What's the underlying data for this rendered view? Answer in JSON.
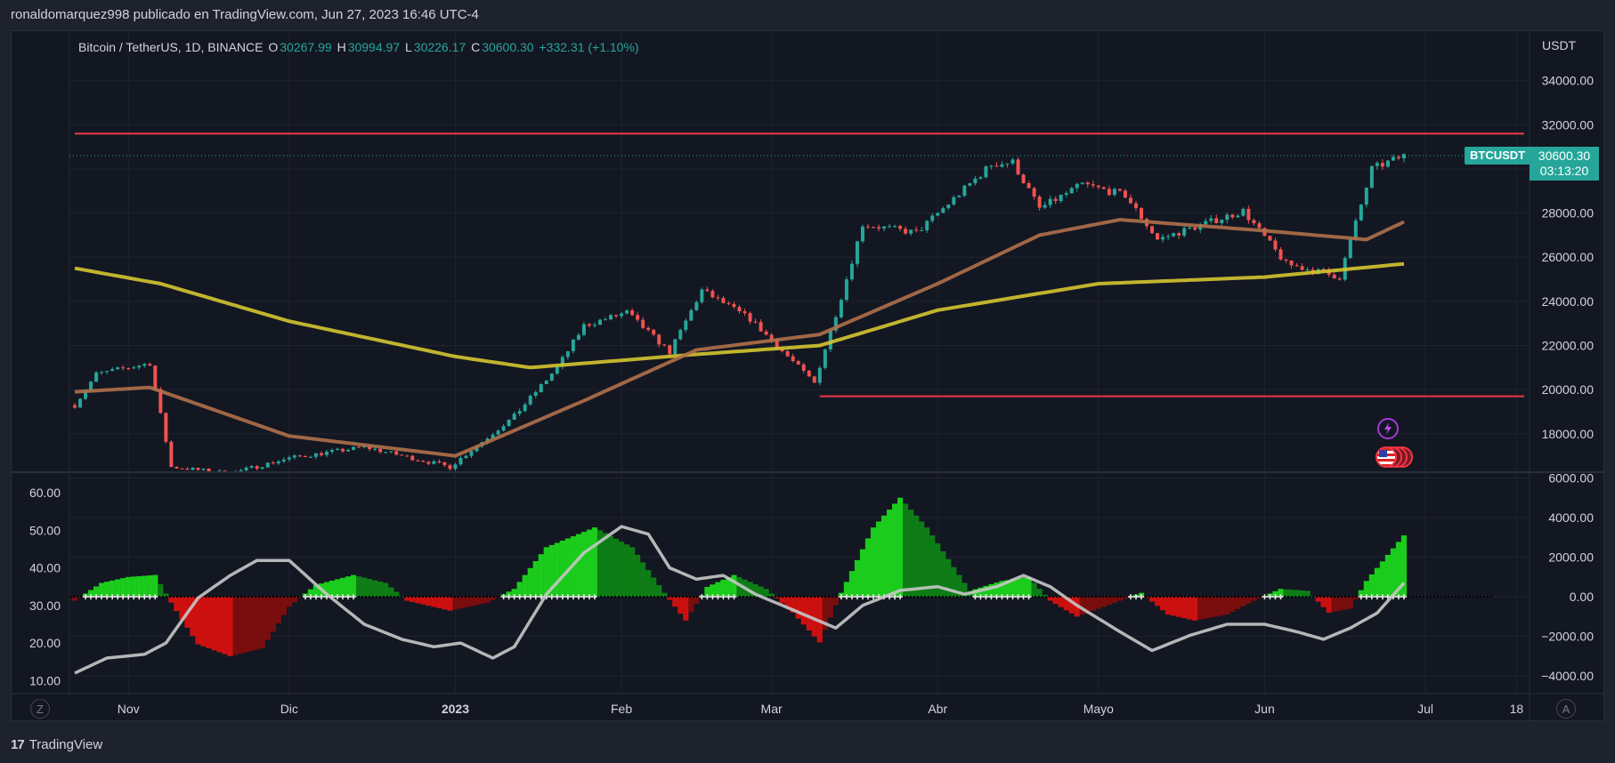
{
  "header": {
    "text": "ronaldomarquez998 publicado en TradingView.com, Jun 27, 2023 16:46 UTC-4"
  },
  "legend": {
    "symbol": "Bitcoin / TetherUS, 1D, BINANCE",
    "o_label": "O",
    "o_value": "30267.99",
    "h_label": "H",
    "h_value": "30994.97",
    "l_label": "L",
    "l_value": "30226.17",
    "c_label": "C",
    "c_value": "30600.30",
    "change": "+332.31 (+1.10%)"
  },
  "price_tag": {
    "symbol": "BTCUSDT",
    "price": "30600.30",
    "countdown": "03:13:20"
  },
  "footer": {
    "brand": "TradingView",
    "logo": "17"
  },
  "buttons": {
    "zoom": "Z",
    "auto": "A"
  },
  "colors": {
    "up": "#26a69a",
    "down": "#ef5350",
    "ema200": "#d5c530",
    "ema50": "#b0704a",
    "resistance": "#f23645",
    "green_fill": "#1ccc1c",
    "red_fill": "#cc1010",
    "grey_line": "#c8c8c8"
  },
  "chart_data": [
    {
      "type": "candlestick",
      "title": "Bitcoin / TetherUS, 1D, BINANCE",
      "currency": "USDT",
      "ylim": [
        16300,
        35800
      ],
      "y_ticks": [
        "34000.00",
        "32000.00",
        "30000.00",
        "28000.00",
        "26000.00",
        "24000.00",
        "22000.00",
        "20000.00",
        "18000.00"
      ],
      "x_ticks": [
        "Nov",
        "Dic",
        "2023",
        "Feb",
        "Mar",
        "Abr",
        "Mayo",
        "Jun",
        "Jul",
        "18"
      ],
      "last_price": 30600.3,
      "horizontal_lines": [
        {
          "name": "resistance",
          "value": 31600,
          "from": "Oct 22",
          "to": "end"
        },
        {
          "name": "support",
          "value": 19700,
          "from": "Mar 10",
          "to": "end"
        }
      ],
      "closes_sampled": [
        {
          "date": "Oct 22",
          "close": 19300
        },
        {
          "date": "Oct 26",
          "close": 20700
        },
        {
          "date": "Nov 5",
          "close": 21200
        },
        {
          "date": "Nov 9",
          "close": 16500
        },
        {
          "date": "Nov 20",
          "close": 16200
        },
        {
          "date": "Dec 1",
          "close": 16900
        },
        {
          "date": "Dec 15",
          "close": 17400
        },
        {
          "date": "Dec 31",
          "close": 16500
        },
        {
          "date": "Jan 12",
          "close": 18800
        },
        {
          "date": "Jan 20",
          "close": 21000
        },
        {
          "date": "Jan 25",
          "close": 22900
        },
        {
          "date": "Feb 2",
          "close": 23500
        },
        {
          "date": "Feb 10",
          "close": 21700
        },
        {
          "date": "Feb 16",
          "close": 24500
        },
        {
          "date": "Feb 25",
          "close": 23200
        },
        {
          "date": "Mar 9",
          "close": 20300
        },
        {
          "date": "Mar 14",
          "close": 24200
        },
        {
          "date": "Mar 18",
          "close": 27500
        },
        {
          "date": "Mar 28",
          "close": 27100
        },
        {
          "date": "Apr 11",
          "close": 30200
        },
        {
          "date": "Apr 15",
          "close": 30300
        },
        {
          "date": "Apr 20",
          "close": 28200
        },
        {
          "date": "Apr 28",
          "close": 29300
        },
        {
          "date": "May 6",
          "close": 28800
        },
        {
          "date": "May 12",
          "close": 26800
        },
        {
          "date": "May 28",
          "close": 28100
        },
        {
          "date": "Jun 5",
          "close": 25700
        },
        {
          "date": "Jun 15",
          "close": 25100
        },
        {
          "date": "Jun 21",
          "close": 30000
        },
        {
          "date": "Jun 27",
          "close": 30600
        }
      ],
      "series": [
        {
          "name": "",
          "role": "ma-slow",
          "points": [
            {
              "date": "Oct 22",
              "value": 25500
            },
            {
              "date": "Nov 7",
              "value": 24800
            },
            {
              "date": "Dec 1",
              "value": 23100
            },
            {
              "date": "Jan 1",
              "value": 21500
            },
            {
              "date": "Jan 15",
              "value": 21000
            },
            {
              "date": "Feb 15",
              "value": 21600
            },
            {
              "date": "Mar 10",
              "value": 22000
            },
            {
              "date": "Apr 1",
              "value": 23600
            },
            {
              "date": "May 1",
              "value": 24800
            },
            {
              "date": "Jun 1",
              "value": 25100
            },
            {
              "date": "Jun 27",
              "value": 25700
            }
          ]
        },
        {
          "name": "",
          "role": "ma-fast",
          "points": [
            {
              "date": "Oct 22",
              "value": 19900
            },
            {
              "date": "Nov 5",
              "value": 20100
            },
            {
              "date": "Dec 1",
              "value": 17900
            },
            {
              "date": "Jan 1",
              "value": 17000
            },
            {
              "date": "Jan 25",
              "value": 19500
            },
            {
              "date": "Feb 15",
              "value": 21800
            },
            {
              "date": "Mar 10",
              "value": 22500
            },
            {
              "date": "Apr 1",
              "value": 24800
            },
            {
              "date": "Apr 20",
              "value": 27000
            },
            {
              "date": "May 5",
              "value": 27700
            },
            {
              "date": "Jun 1",
              "value": 27200
            },
            {
              "date": "Jun 20",
              "value": 26800
            },
            {
              "date": "Jun 27",
              "value": 27600
            }
          ]
        }
      ]
    },
    {
      "type": "area",
      "title": "",
      "left_axis": {
        "ylim": [
          7,
          65
        ],
        "ticks": [
          "60.00",
          "50.00",
          "40.00",
          "30.00",
          "20.00",
          "10.00"
        ]
      },
      "right_axis": {
        "ylim": [
          -4800,
          6200
        ],
        "ticks": [
          "6000.00",
          "4000.00",
          "2000.00",
          "0.00",
          "−2000.00",
          "−4000.00"
        ]
      },
      "series": [
        {
          "name": "",
          "role": "histogram",
          "axis": "right",
          "points": [
            {
              "date": "Oct 22",
              "value": -200
            },
            {
              "date": "Oct 27",
              "value": 700
            },
            {
              "date": "Nov 1",
              "value": 1000
            },
            {
              "date": "Nov 6",
              "value": 1100
            },
            {
              "date": "Nov 9",
              "value": -300
            },
            {
              "date": "Nov 14",
              "value": -2400
            },
            {
              "date": "Nov 20",
              "value": -3000
            },
            {
              "date": "Nov 26",
              "value": -2600
            },
            {
              "date": "Dec 1",
              "value": -500
            },
            {
              "date": "Dec 6",
              "value": 600
            },
            {
              "date": "Dec 13",
              "value": 1100
            },
            {
              "date": "Dec 19",
              "value": 700
            },
            {
              "date": "Dec 23",
              "value": -200
            },
            {
              "date": "Dec 31",
              "value": -700
            },
            {
              "date": "Jan 7",
              "value": -300
            },
            {
              "date": "Jan 12",
              "value": 400
            },
            {
              "date": "Jan 18",
              "value": 2500
            },
            {
              "date": "Jan 27",
              "value": 3500
            },
            {
              "date": "Feb 3",
              "value": 2500
            },
            {
              "date": "Feb 9",
              "value": 200
            },
            {
              "date": "Feb 13",
              "value": -1200
            },
            {
              "date": "Feb 17",
              "value": 500
            },
            {
              "date": "Feb 22",
              "value": 1100
            },
            {
              "date": "Feb 28",
              "value": 400
            },
            {
              "date": "Mar 5",
              "value": -800
            },
            {
              "date": "Mar 10",
              "value": -2300
            },
            {
              "date": "Mar 14",
              "value": 200
            },
            {
              "date": "Mar 20",
              "value": 3500
            },
            {
              "date": "Mar 25",
              "value": 5000
            },
            {
              "date": "Mar 30",
              "value": 3500
            },
            {
              "date": "Apr 7",
              "value": 300
            },
            {
              "date": "Apr 13",
              "value": 800
            },
            {
              "date": "Apr 18",
              "value": 1000
            },
            {
              "date": "Apr 22",
              "value": -200
            },
            {
              "date": "Apr 27",
              "value": -1000
            },
            {
              "date": "May 3",
              "value": -400
            },
            {
              "date": "May 9",
              "value": 200
            },
            {
              "date": "May 14",
              "value": -900
            },
            {
              "date": "May 19",
              "value": -1200
            },
            {
              "date": "May 25",
              "value": -900
            },
            {
              "date": "May 30",
              "value": -200
            },
            {
              "date": "Jun 4",
              "value": 400
            },
            {
              "date": "Jun 9",
              "value": 300
            },
            {
              "date": "Jun 13",
              "value": -800
            },
            {
              "date": "Jun 17",
              "value": -600
            },
            {
              "date": "Jun 20",
              "value": 800
            },
            {
              "date": "Jun 27",
              "value": 3100
            }
          ]
        },
        {
          "name": "",
          "role": "line",
          "axis": "left",
          "points": [
            {
              "date": "Oct 22",
              "value": 12
            },
            {
              "date": "Oct 28",
              "value": 16
            },
            {
              "date": "Nov 4",
              "value": 17
            },
            {
              "date": "Nov 8",
              "value": 20
            },
            {
              "date": "Nov 14",
              "value": 32
            },
            {
              "date": "Nov 20",
              "value": 38
            },
            {
              "date": "Nov 25",
              "value": 42
            },
            {
              "date": "Dec 1",
              "value": 42
            },
            {
              "date": "Dec 8",
              "value": 33
            },
            {
              "date": "Dec 15",
              "value": 25
            },
            {
              "date": "Dec 22",
              "value": 21
            },
            {
              "date": "Dec 28",
              "value": 19
            },
            {
              "date": "Jan 2",
              "value": 20
            },
            {
              "date": "Jan 8",
              "value": 16
            },
            {
              "date": "Jan 12",
              "value": 19
            },
            {
              "date": "Jan 18",
              "value": 33
            },
            {
              "date": "Jan 25",
              "value": 44
            },
            {
              "date": "Feb 1",
              "value": 51
            },
            {
              "date": "Feb 6",
              "value": 49
            },
            {
              "date": "Feb 10",
              "value": 40
            },
            {
              "date": "Feb 15",
              "value": 37
            },
            {
              "date": "Feb 20",
              "value": 38
            },
            {
              "date": "Feb 26",
              "value": 33
            },
            {
              "date": "Mar 3",
              "value": 30
            },
            {
              "date": "Mar 8",
              "value": 27
            },
            {
              "date": "Mar 13",
              "value": 24
            },
            {
              "date": "Mar 18",
              "value": 30
            },
            {
              "date": "Mar 25",
              "value": 34
            },
            {
              "date": "Apr 1",
              "value": 35
            },
            {
              "date": "Apr 6",
              "value": 33
            },
            {
              "date": "Apr 12",
              "value": 35
            },
            {
              "date": "Apr 17",
              "value": 38
            },
            {
              "date": "Apr 22",
              "value": 35
            },
            {
              "date": "Apr 27",
              "value": 30
            },
            {
              "date": "May 5",
              "value": 23
            },
            {
              "date": "May 11",
              "value": 18
            },
            {
              "date": "May 18",
              "value": 22
            },
            {
              "date": "May 25",
              "value": 25
            },
            {
              "date": "Jun 1",
              "value": 25
            },
            {
              "date": "Jun 7",
              "value": 23
            },
            {
              "date": "Jun 12",
              "value": 21
            },
            {
              "date": "Jun 17",
              "value": 24
            },
            {
              "date": "Jun 22",
              "value": 28
            },
            {
              "date": "Jun 27",
              "value": 36
            }
          ]
        }
      ]
    }
  ]
}
